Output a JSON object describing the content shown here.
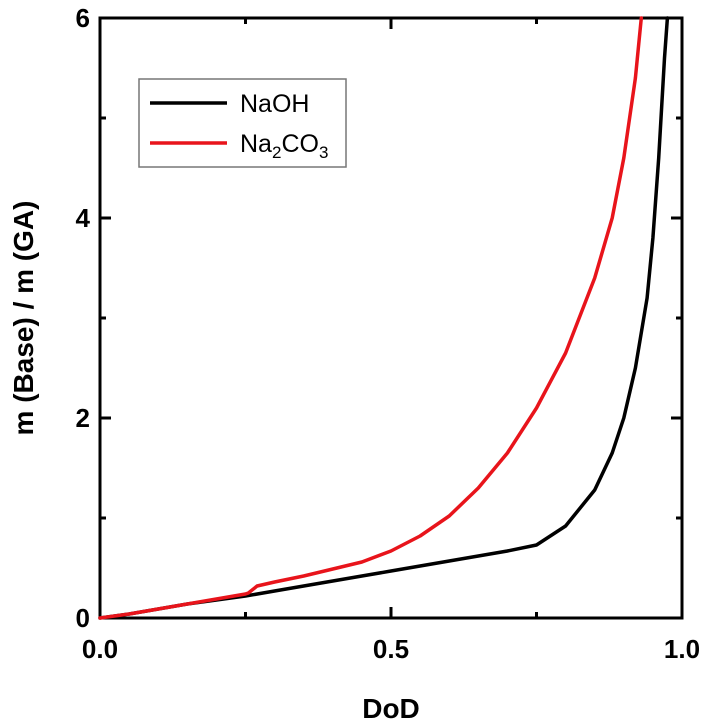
{
  "chart_data": {
    "type": "line",
    "xlabel": "DoD",
    "ylabel": "m (Base) / m (GA)",
    "xlim": [
      0.0,
      1.0
    ],
    "ylim": [
      0,
      6
    ],
    "x_ticks": [
      0.0,
      0.5,
      1.0
    ],
    "x_tick_labels": [
      "0.0",
      "0.5",
      "1.0"
    ],
    "y_ticks": [
      0,
      2,
      4,
      6
    ],
    "y_tick_labels": [
      "0",
      "2",
      "4",
      "6"
    ],
    "grid": false,
    "legend_position": "top-left",
    "series": [
      {
        "name": "NaOH",
        "legend_label": {
          "base": "NaOH",
          "sub1": "",
          "mid": "",
          "sub2": ""
        },
        "color": "#000000",
        "points": [
          [
            0,
            0
          ],
          [
            0.05,
            0.04
          ],
          [
            0.1,
            0.09
          ],
          [
            0.15,
            0.14
          ],
          [
            0.2,
            0.18
          ],
          [
            0.25,
            0.22
          ],
          [
            0.3,
            0.27
          ],
          [
            0.35,
            0.32
          ],
          [
            0.4,
            0.37
          ],
          [
            0.45,
            0.42
          ],
          [
            0.5,
            0.47
          ],
          [
            0.55,
            0.52
          ],
          [
            0.6,
            0.57
          ],
          [
            0.65,
            0.62
          ],
          [
            0.7,
            0.67
          ],
          [
            0.75,
            0.73
          ],
          [
            0.8,
            0.92
          ],
          [
            0.85,
            1.28
          ],
          [
            0.88,
            1.65
          ],
          [
            0.9,
            2.0
          ],
          [
            0.92,
            2.5
          ],
          [
            0.94,
            3.2
          ],
          [
            0.95,
            3.8
          ],
          [
            0.96,
            4.6
          ],
          [
            0.97,
            5.6
          ],
          [
            0.975,
            6.0
          ]
        ]
      },
      {
        "name": "Na2CO3",
        "legend_label": {
          "base": "Na",
          "sub1": "2",
          "mid": "CO",
          "sub2": "3"
        },
        "color": "#e8141b",
        "points": [
          [
            0,
            0
          ],
          [
            0.05,
            0.04
          ],
          [
            0.1,
            0.09
          ],
          [
            0.15,
            0.14
          ],
          [
            0.2,
            0.19
          ],
          [
            0.25,
            0.24
          ],
          [
            0.255,
            0.25
          ],
          [
            0.27,
            0.32
          ],
          [
            0.3,
            0.36
          ],
          [
            0.35,
            0.42
          ],
          [
            0.4,
            0.49
          ],
          [
            0.45,
            0.56
          ],
          [
            0.5,
            0.67
          ],
          [
            0.55,
            0.82
          ],
          [
            0.6,
            1.02
          ],
          [
            0.65,
            1.3
          ],
          [
            0.7,
            1.65
          ],
          [
            0.75,
            2.1
          ],
          [
            0.8,
            2.65
          ],
          [
            0.85,
            3.4
          ],
          [
            0.88,
            4.0
          ],
          [
            0.9,
            4.6
          ],
          [
            0.92,
            5.4
          ],
          [
            0.93,
            6.0
          ]
        ]
      }
    ]
  }
}
